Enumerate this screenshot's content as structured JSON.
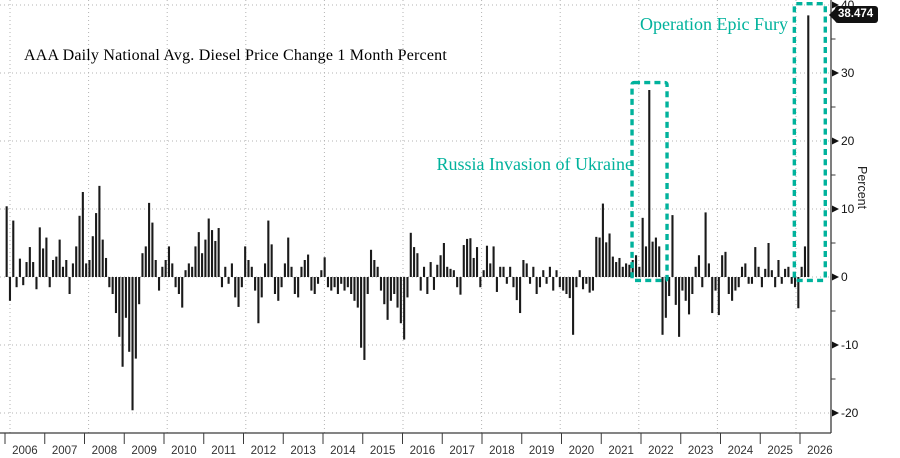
{
  "header": {
    "title": "AAA Daily National Avg. Diesel Price Change 1 Month Percent"
  },
  "annotations": {
    "epic_fury": {
      "label": "Operation Epic Fury",
      "color": "#00b29c"
    },
    "russia_invasion": {
      "label": "Russia Invasion of Ukraine",
      "color": "#00b29c"
    }
  },
  "last_value_label": "38.474",
  "y_axis": {
    "label": "Percent",
    "major_ticks": [
      40,
      30,
      20,
      10,
      0,
      -10,
      -20
    ],
    "minor_ticks": [
      35,
      25,
      15,
      5,
      -5,
      -15
    ]
  },
  "x_axis": {
    "years": [
      2006,
      2007,
      2008,
      2009,
      2010,
      2011,
      2012,
      2013,
      2014,
      2015,
      2016,
      2017,
      2018,
      2019,
      2020,
      2021,
      2022,
      2023,
      2024,
      2025,
      2026
    ]
  },
  "colors": {
    "background": "#ffffff",
    "bar": "#1a1a1a",
    "highlight": "#00b29c",
    "grid": "#b3b3b3",
    "axis": "#3a3a3a",
    "tick_label": "#111111",
    "year_label": "#333333",
    "tag_bg": "#111111",
    "tag_text": "#ffffff"
  },
  "chart_data": {
    "type": "bar",
    "title": "AAA Daily National Avg. Diesel Price Change 1 Month Percent",
    "xlabel": "",
    "ylabel": "Percent",
    "x_unit": "month",
    "start_month": "2006-01",
    "end_month": "2026-03",
    "ylim": [
      -22.9,
      40.6
    ],
    "grid": "dotted",
    "legend": "none",
    "monthly_values": [
      10.4,
      -3.5,
      8.3,
      -1.5,
      2.7,
      -1.2,
      2.2,
      4.4,
      2.2,
      -1.8,
      7.3,
      4.2,
      5.8,
      -1.5,
      2.5,
      3.0,
      5.5,
      1.5,
      2.5,
      -2.5,
      2.0,
      4.5,
      9.0,
      12.5,
      2.0,
      2.5,
      6.0,
      9.4,
      13.4,
      5.5,
      2.8,
      -1.5,
      -2.5,
      -5.3,
      -8.8,
      -13.2,
      -6.0,
      -11.0,
      -19.6,
      -12.0,
      -4.0,
      3.5,
      4.5,
      10.9,
      8.0,
      2.5,
      -2.0,
      1.5,
      2.5,
      4.5,
      2.0,
      -1.5,
      -2.5,
      -4.5,
      1.0,
      2.0,
      1.5,
      4.5,
      6.6,
      3.5,
      5.5,
      8.6,
      6.9,
      5.3,
      7.2,
      -1.5,
      1.5,
      -1.0,
      2.0,
      -3.0,
      -4.4,
      -1.5,
      4.5,
      2.5,
      1.5,
      -2.0,
      -6.8,
      -3.0,
      2.0,
      8.3,
      4.8,
      -2.5,
      -3.5,
      -1.5,
      2.0,
      5.8,
      1.5,
      -2.5,
      -3.0,
      1.5,
      2.5,
      3.3,
      -2.0,
      -2.5,
      -1.0,
      1.0,
      2.9,
      -1.5,
      -2.0,
      -1.5,
      -2.5,
      -1.0,
      -2.0,
      -1.5,
      -2.5,
      -3.5,
      -4.5,
      -10.4,
      -12.2,
      -2.5,
      4.0,
      2.5,
      1.5,
      -2.0,
      -4.0,
      -6.3,
      -3.5,
      -2.5,
      -4.5,
      -6.8,
      -9.2,
      -3.0,
      6.5,
      4.4,
      3.5,
      -2.0,
      1.5,
      -2.5,
      2.2,
      -1.9,
      1.8,
      3.2,
      5.0,
      1.5,
      1.2,
      1.0,
      -1.5,
      -2.6,
      4.7,
      5.6,
      5.7,
      2.8,
      4.4,
      -1.5,
      1.0,
      4.6,
      2.0,
      4.5,
      -2.2,
      1.5,
      1.5,
      -1.0,
      1.5,
      -1.5,
      -3.4,
      -5.3,
      2.5,
      2.0,
      -1.0,
      1.5,
      -2.5,
      -1.5,
      1.0,
      -1.0,
      1.5,
      -2.0,
      1.0,
      -1.5,
      -2.0,
      -2.5,
      -3.1,
      -8.5,
      -1.5,
      1.0,
      -1.8,
      -1.0,
      -2.3,
      -2.0,
      5.9,
      5.8,
      10.8,
      5.1,
      6.4,
      3.0,
      2.2,
      2.8,
      1.5,
      2.0,
      1.8,
      2.5,
      3.2,
      1.5,
      8.7,
      4.5,
      27.5,
      5.2,
      5.8,
      4.5,
      -8.5,
      -6.0,
      -2.8,
      9.1,
      -4.1,
      -8.8,
      -2.0,
      -3.5,
      -5.5,
      -2.5,
      1.5,
      3.2,
      -1.5,
      9.5,
      2.0,
      -5.3,
      -2.0,
      -5.6,
      3.2,
      3.7,
      -2.5,
      -3.5,
      -2.0,
      -1.5,
      1.5,
      2.0,
      -1.0,
      -1.0,
      4.4,
      1.5,
      -1.5,
      1.2,
      5.0,
      1.0,
      -1.5,
      2.5,
      -1.0,
      1.2,
      1.5,
      -1.0,
      -1.5,
      -4.6,
      1.5,
      4.5,
      38.474
    ],
    "last_point": {
      "date": "2026-03",
      "value": 38.474,
      "label": "38.474"
    },
    "highlights": [
      {
        "label": "Russia Invasion of Ukraine",
        "start_index": 190,
        "end_index": 198,
        "top_value": 28.6,
        "bottom_value": -0.5,
        "left_pad": 4,
        "right_pad": 4.5
      },
      {
        "label": "Operation Epic Fury",
        "start_index": 239,
        "end_index": 242,
        "top_value": 40.2,
        "bottom_value": -0.5,
        "left_pad": 4,
        "right_pad": 17
      }
    ]
  }
}
